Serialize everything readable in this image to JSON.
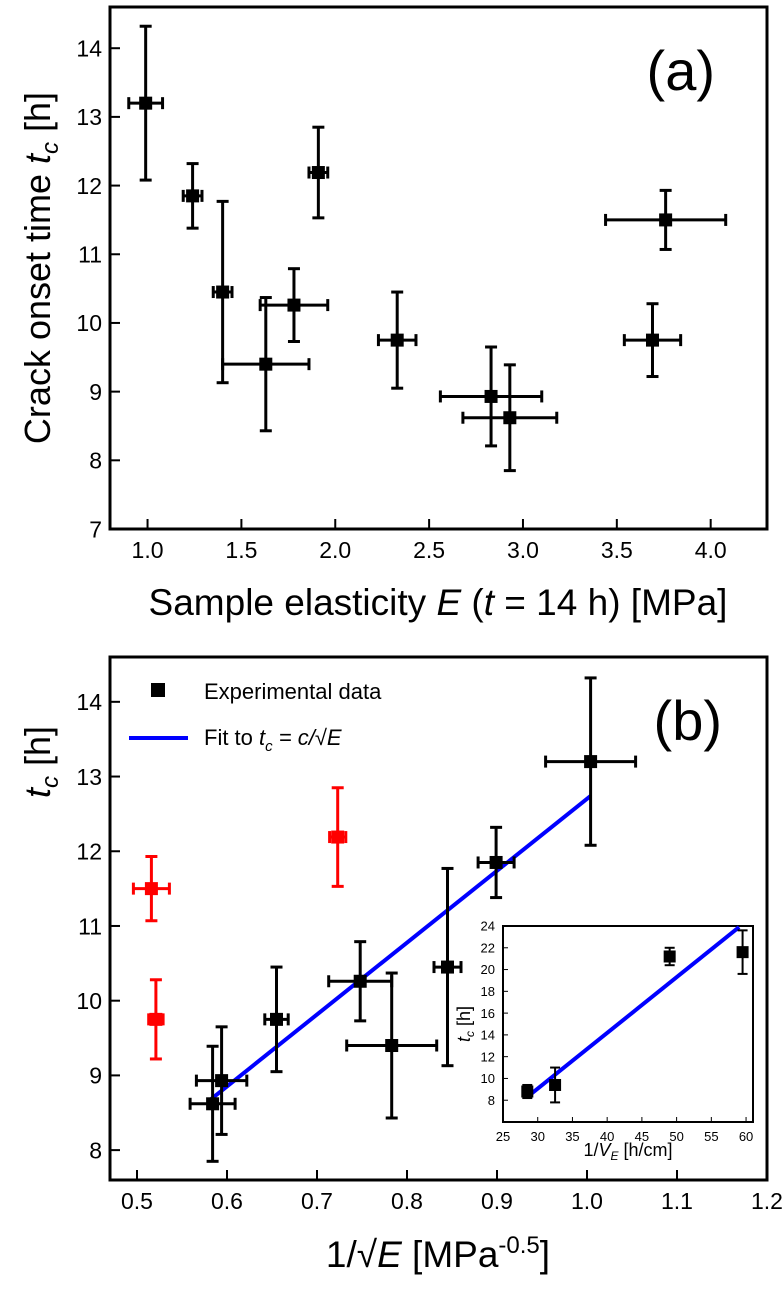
{
  "chart_data": [
    {
      "type": "scatter",
      "panel_label": "(a)",
      "ylabel": {
        "main": "Crack onset time ",
        "var": "t",
        "sub": "c",
        "unit": " [h]"
      },
      "xlabel": {
        "main": "Sample elasticity ",
        "var": "E",
        "mid": " (",
        "var2": "t",
        "rest": " = 14 h) [MPa]"
      },
      "xlim": [
        0.8,
        4.3
      ],
      "ylim": [
        7,
        14.6
      ],
      "xticks": [
        1.0,
        1.5,
        2.0,
        2.5,
        3.0,
        3.5,
        4.0
      ],
      "xtick_labels": [
        "1.0",
        "1.5",
        "2.0",
        "2.5",
        "3.0",
        "3.5",
        "4.0"
      ],
      "yticks": [
        7,
        8,
        9,
        10,
        11,
        12,
        13,
        14
      ],
      "ytick_labels": [
        "7",
        "8",
        "9",
        "10",
        "11",
        "12",
        "13",
        "14"
      ],
      "points": [
        {
          "x": 0.99,
          "y": 13.2,
          "xerr": 0.09,
          "yerr": 1.12,
          "color": "#000000"
        },
        {
          "x": 1.24,
          "y": 11.85,
          "xerr": 0.05,
          "yerr": 0.47,
          "color": "#000000"
        },
        {
          "x": 1.4,
          "y": 10.45,
          "xerr": 0.05,
          "yerr": 1.32,
          "color": "#000000"
        },
        {
          "x": 1.63,
          "y": 9.4,
          "xerr": 0.23,
          "yerr": 0.97,
          "color": "#000000"
        },
        {
          "x": 1.78,
          "y": 10.26,
          "xerr": 0.18,
          "yerr": 0.53,
          "color": "#000000"
        },
        {
          "x": 1.91,
          "y": 12.19,
          "xerr": 0.05,
          "yerr": 0.66,
          "color": "#000000"
        },
        {
          "x": 2.33,
          "y": 9.75,
          "xerr": 0.1,
          "yerr": 0.7,
          "color": "#000000"
        },
        {
          "x": 2.83,
          "y": 8.93,
          "xerr": 0.27,
          "yerr": 0.72,
          "color": "#000000"
        },
        {
          "x": 2.93,
          "y": 8.62,
          "xerr": 0.25,
          "yerr": 0.77,
          "color": "#000000"
        },
        {
          "x": 3.69,
          "y": 9.75,
          "xerr": 0.15,
          "yerr": 0.53,
          "color": "#000000"
        },
        {
          "x": 3.76,
          "y": 11.5,
          "xerr": 0.32,
          "yerr": 0.43,
          "color": "#000000"
        }
      ]
    },
    {
      "type": "scatter",
      "panel_label": "(b)",
      "ylabel": {
        "var": "t",
        "sub": "c",
        "unit": " [h]"
      },
      "xlabel": {
        "main": "1/√",
        "var": "E",
        "unit": " [MPa",
        "sup": "-0.5",
        "end": "]"
      },
      "xlim": [
        0.47,
        1.2
      ],
      "ylim": [
        7.6,
        14.6
      ],
      "xticks": [
        0.5,
        0.6,
        0.7,
        0.8,
        0.9,
        1.0,
        1.1,
        1.2
      ],
      "xtick_labels": [
        "0.5",
        "0.6",
        "0.7",
        "0.8",
        "0.9",
        "1.0",
        "1.1",
        "1.2"
      ],
      "yticks": [
        8,
        9,
        10,
        11,
        12,
        13,
        14
      ],
      "ytick_labels": [
        "8",
        "9",
        "10",
        "11",
        "12",
        "13",
        "14"
      ],
      "legend": {
        "placement": "top-left",
        "marker_label": "Experimental data",
        "line_label": {
          "main": "Fit to ",
          "var": "t",
          "sub": "c",
          "rest": " = c/√",
          "var2": "E"
        }
      },
      "points": [
        {
          "x": 1.004,
          "y": 13.2,
          "xerr": 0.05,
          "yerr": 1.12,
          "color": "#000000"
        },
        {
          "x": 0.899,
          "y": 11.85,
          "xerr": 0.02,
          "yerr": 0.47,
          "color": "#000000"
        },
        {
          "x": 0.845,
          "y": 10.45,
          "xerr": 0.015,
          "yerr": 1.32,
          "color": "#000000"
        },
        {
          "x": 0.783,
          "y": 9.4,
          "xerr": 0.05,
          "yerr": 0.97,
          "color": "#000000"
        },
        {
          "x": 0.748,
          "y": 10.26,
          "xerr": 0.035,
          "yerr": 0.53,
          "color": "#000000"
        },
        {
          "x": 0.655,
          "y": 9.75,
          "xerr": 0.013,
          "yerr": 0.7,
          "color": "#000000"
        },
        {
          "x": 0.594,
          "y": 8.93,
          "xerr": 0.028,
          "yerr": 0.72,
          "color": "#000000"
        },
        {
          "x": 0.584,
          "y": 8.62,
          "xerr": 0.025,
          "yerr": 0.77,
          "color": "#000000"
        },
        {
          "x": 0.723,
          "y": 12.19,
          "xerr": 0.009,
          "yerr": 0.66,
          "color": "#ff0000"
        },
        {
          "x": 0.521,
          "y": 9.75,
          "xerr": 0.008,
          "yerr": 0.53,
          "color": "#ff0000"
        },
        {
          "x": 0.516,
          "y": 11.5,
          "xerr": 0.02,
          "yerr": 0.43,
          "color": "#ff0000"
        }
      ],
      "fit_line": {
        "x": [
          0.58,
          1.004
        ],
        "y": [
          8.66,
          12.74
        ],
        "color": "#0000ff"
      },
      "inset": {
        "ylabel": {
          "var": "t",
          "sub": "c",
          "unit": " [h]"
        },
        "xlabel": {
          "main": "1/",
          "var": "V",
          "sub": "E",
          "unit": " [h/cm]"
        },
        "xlim": [
          25,
          61
        ],
        "ylim": [
          6,
          24
        ],
        "xticks": [
          25,
          30,
          35,
          40,
          45,
          50,
          55,
          60
        ],
        "xtick_labels": [
          "25",
          "30",
          "35",
          "40",
          "45",
          "50",
          "55",
          "60"
        ],
        "yticks": [
          8,
          10,
          12,
          14,
          16,
          18,
          20,
          22,
          24
        ],
        "ytick_labels": [
          "8",
          "10",
          "12",
          "14",
          "16",
          "18",
          "20",
          "22",
          "24"
        ],
        "points": [
          {
            "x": 28.5,
            "y": 8.8,
            "xerr": 0.6,
            "yerr": 0.6,
            "color": "#000000"
          },
          {
            "x": 32.5,
            "y": 9.4,
            "xerr": 0.6,
            "yerr": 1.6,
            "color": "#000000"
          },
          {
            "x": 49.0,
            "y": 21.2,
            "xerr": 0.6,
            "yerr": 0.8,
            "color": "#000000"
          },
          {
            "x": 59.5,
            "y": 21.6,
            "xerr": 0.6,
            "yerr": 2.0,
            "color": "#000000"
          }
        ],
        "fit_line": {
          "x": [
            28.5,
            59.0
          ],
          "y": [
            8.3,
            23.9
          ],
          "color": "#0000ff"
        }
      }
    }
  ]
}
